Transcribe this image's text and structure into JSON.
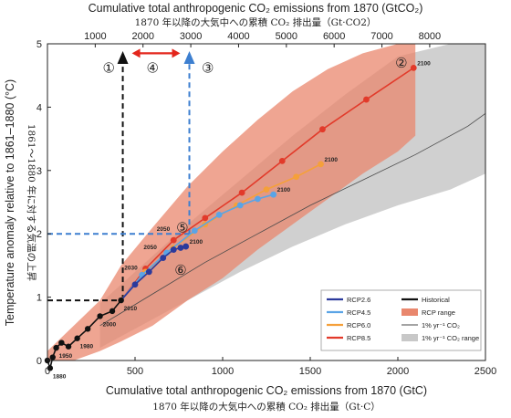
{
  "chart_data": {
    "type": "line",
    "top_title": "Cumulative total anthropogenic CO₂ emissions from 1870 (GtCO₂)",
    "top_title_jp": "1870 年以降の大気中への累積 CO₂ 排出量（Gt·CO2）",
    "top_ticks": [
      "1000",
      "2000",
      "3000",
      "4000",
      "5000",
      "6000",
      "7000",
      "8000"
    ],
    "xlabel": "Cumulative total anthropogenic CO₂ emissions from 1870 (GtC)",
    "xlabel_jp": "1870 年以降の大気中への累積 CO₂ 排出量（Gt·C）",
    "ylabel": "Temperature anomaly relative to 1861–1880 (°C)",
    "ylabel_jp": "1861～1880 年に対する気温の上昇",
    "xlim": [
      0,
      2500
    ],
    "ylim": [
      0,
      5
    ],
    "x_ticks": [
      "0",
      "500",
      "1000",
      "1500",
      "2000",
      "2500"
    ],
    "y_ticks": [
      "0",
      "1",
      "2",
      "3",
      "4",
      "5"
    ],
    "legend_position": "bottom-right",
    "colors": {
      "historical": "#111111",
      "rcp26": "#2b3a9c",
      "rcp45": "#5aa4e6",
      "rcp60": "#f5a03a",
      "rcp85": "#e23a2a",
      "rcp_range": "#e9876d",
      "one_pct": "#4a4a4a",
      "one_pct_range": "#c8c8c8",
      "marker_guide_black": "#111111",
      "marker_guide_blue": "#3d7fd0",
      "arrow_red": "#e3261c"
    },
    "series": [
      {
        "name": "Historical",
        "color": "#111111",
        "x": [
          0,
          15,
          30,
          50,
          80,
          120,
          170,
          230,
          300,
          370,
          420
        ],
        "y": [
          0.0,
          -0.12,
          0.05,
          0.2,
          0.28,
          0.22,
          0.35,
          0.5,
          0.7,
          0.78,
          0.95
        ],
        "labels": [
          {
            "text": "1880",
            "x": 15,
            "y": -0.12
          },
          {
            "text": "1950",
            "x": 50,
            "y": 0.2
          },
          {
            "text": "1980",
            "x": 170,
            "y": 0.35
          },
          {
            "text": "2000",
            "x": 300,
            "y": 0.7
          },
          {
            "text": "2010",
            "x": 420,
            "y": 0.95
          }
        ]
      },
      {
        "name": "RCP2.6",
        "color": "#2b3a9c",
        "x": [
          420,
          500,
          580,
          660,
          720,
          760,
          790
        ],
        "y": [
          0.95,
          1.2,
          1.4,
          1.62,
          1.75,
          1.78,
          1.8
        ],
        "labels": [
          {
            "text": "2030",
            "x": 530,
            "y": 1.42
          },
          {
            "text": "2050",
            "x": 640,
            "y": 1.74
          },
          {
            "text": "2100",
            "x": 790,
            "y": 1.8
          }
        ]
      },
      {
        "name": "RCP4.5",
        "color": "#5aa4e6",
        "x": [
          420,
          540,
          680,
          840,
          980,
          1100,
          1200,
          1290
        ],
        "y": [
          0.95,
          1.35,
          1.7,
          2.05,
          2.3,
          2.45,
          2.55,
          2.62
        ],
        "labels": [
          {
            "text": "2100",
            "x": 1290,
            "y": 2.62
          }
        ]
      },
      {
        "name": "RCP6.0",
        "color": "#f5a03a",
        "x": [
          420,
          560,
          720,
          900,
          1080,
          1250,
          1420,
          1560
        ],
        "y": [
          0.95,
          1.4,
          1.78,
          2.15,
          2.45,
          2.7,
          2.9,
          3.1
        ],
        "labels": [
          {
            "text": "2100",
            "x": 1560,
            "y": 3.1
          }
        ]
      },
      {
        "name": "RCP8.5",
        "color": "#e23a2a",
        "x": [
          420,
          560,
          720,
          900,
          1110,
          1340,
          1570,
          1820,
          2090
        ],
        "y": [
          0.95,
          1.45,
          1.9,
          2.25,
          2.65,
          3.15,
          3.65,
          4.12,
          4.62
        ],
        "labels": [
          {
            "text": "2050",
            "x": 720,
            "y": 2.02
          },
          {
            "text": "2100",
            "x": 2090,
            "y": 4.62
          }
        ]
      },
      {
        "name": "1% yr⁻¹ CO₂",
        "color": "#4a4a4a",
        "x": [
          300,
          600,
          900,
          1200,
          1500,
          1800,
          2100,
          2400,
          2500
        ],
        "y": [
          0.55,
          1.05,
          1.55,
          2.0,
          2.45,
          2.85,
          3.25,
          3.7,
          3.9
        ]
      }
    ],
    "bands": [
      {
        "name": "RCP range",
        "color": "#e9876d",
        "x": [
          0,
          150,
          300,
          420,
          600,
          800,
          1000,
          1200,
          1400,
          1600,
          1800,
          2000,
          2100
        ],
        "upper": [
          0.15,
          0.55,
          0.95,
          1.5,
          2.1,
          2.75,
          3.3,
          3.8,
          4.25,
          4.6,
          4.85,
          5.0,
          5.0
        ],
        "lower": [
          -0.25,
          -0.05,
          0.15,
          0.3,
          0.55,
          0.95,
          1.3,
          1.75,
          2.15,
          2.55,
          2.95,
          3.3,
          3.55
        ]
      },
      {
        "name": "1% yr⁻¹ CO₂ range",
        "color": "#c8c8c8",
        "x": [
          300,
          500,
          800,
          1100,
          1400,
          1700,
          2000,
          2300,
          2500
        ],
        "upper": [
          0.9,
          1.4,
          2.15,
          2.85,
          3.55,
          4.2,
          4.8,
          5.0,
          5.0
        ],
        "lower": [
          0.2,
          0.5,
          0.95,
          1.4,
          1.8,
          2.15,
          2.45,
          2.7,
          2.95
        ]
      }
    ],
    "legend": {
      "left": [
        "RCP2.6",
        "RCP4.5",
        "RCP6.0",
        "RCP8.5"
      ],
      "right": [
        "Historical",
        "RCP range",
        "1% yr⁻¹ CO₂",
        "1% yr⁻¹ CO₂ range"
      ]
    },
    "annotations": [
      {
        "id": "1",
        "text": "①",
        "x": 350,
        "y": 4.62
      },
      {
        "id": "2",
        "text": "②",
        "x": 2020,
        "y": 4.7
      },
      {
        "id": "3",
        "text": "③",
        "x": 915,
        "y": 4.62
      },
      {
        "id": "4",
        "text": "④",
        "x": 600,
        "y": 4.62
      },
      {
        "id": "5",
        "text": "⑤",
        "x": 770,
        "y": 2.1
      },
      {
        "id": "6",
        "text": "⑥",
        "x": 760,
        "y": 1.43
      }
    ],
    "guides": {
      "black_x": 430,
      "black_y": 0.95,
      "blue_x": 810,
      "blue_y": 2.0,
      "arrow_y": 4.85
    }
  }
}
